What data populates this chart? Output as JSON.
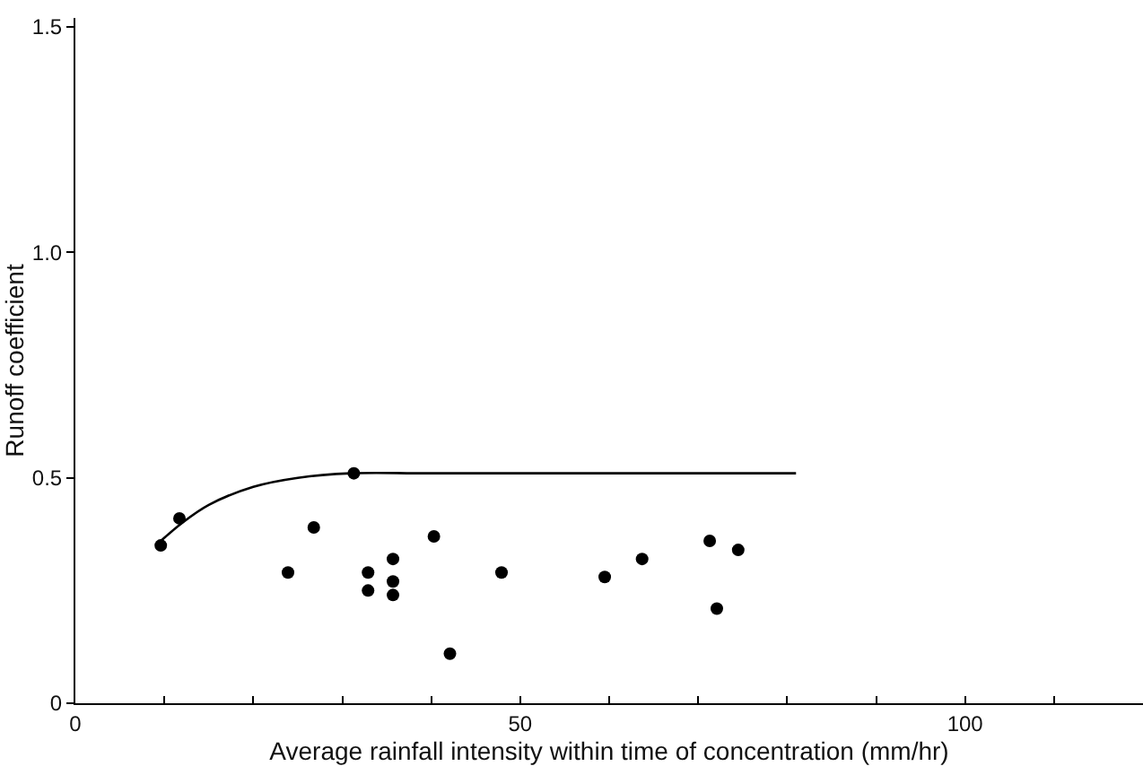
{
  "chart_data": {
    "type": "scatter",
    "xlabel": "Average rainfall intensity within time of concentration (mm/hr)",
    "ylabel": "Runoff coefficient",
    "xlim": [
      0,
      120
    ],
    "ylim": [
      0,
      1.52
    ],
    "xticks": [
      0,
      {
        "value": 10,
        "label": null
      },
      {
        "value": 20,
        "label": null
      },
      {
        "value": 30,
        "label": null
      },
      {
        "value": 40,
        "label": null
      },
      50,
      {
        "value": 60,
        "label": null
      },
      {
        "value": 70,
        "label": null
      },
      {
        "value": 80,
        "label": null
      },
      {
        "value": 90,
        "label": null
      },
      100,
      {
        "value": 110,
        "label": null
      }
    ],
    "yticks": [
      0,
      0.5,
      {
        "value": 1,
        "label": "1.0"
      },
      1.5
    ],
    "grid": false,
    "series": [
      {
        "marker": "circle",
        "color": "#000000",
        "x": [
          9.6,
          11.7,
          23.9,
          26.8,
          31.3,
          32.9,
          32.9,
          35.7,
          35.7,
          35.7,
          40.3,
          42.1,
          47.9,
          59.5,
          63.7,
          71.3,
          72.1,
          74.5
        ],
        "values": [
          0.35,
          0.41,
          0.29,
          0.39,
          0.51,
          0.29,
          0.25,
          0.32,
          0.27,
          0.24,
          0.37,
          0.11,
          0.29,
          0.28,
          0.32,
          0.36,
          0.21,
          0.34
        ]
      },
      {
        "type": "line",
        "marker": "none",
        "color": "#000000",
        "line_style": "solid",
        "x": [
          9.6,
          12,
          15,
          20,
          25,
          31,
          40,
          81
        ],
        "values": [
          0.36,
          0.4,
          0.44,
          0.48,
          0.5,
          0.51,
          0.51,
          0.51
        ]
      }
    ]
  }
}
